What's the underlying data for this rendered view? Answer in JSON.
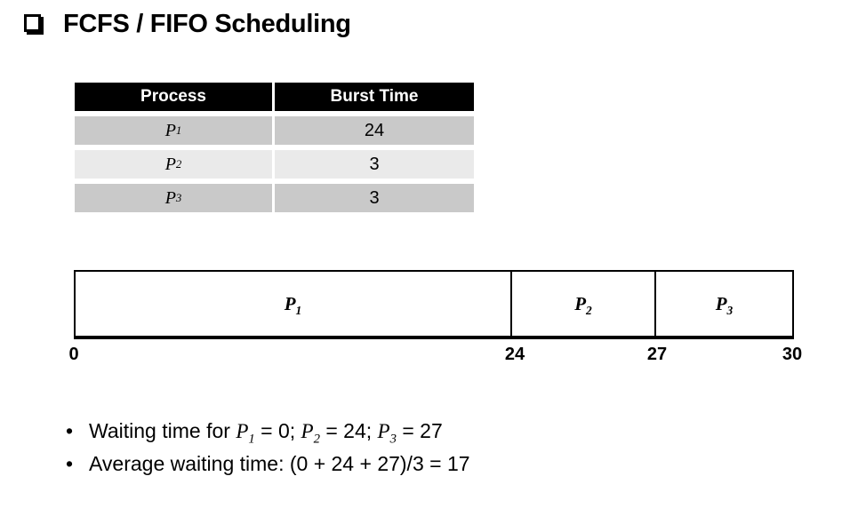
{
  "title": {
    "text": "FCFS / FIFO Scheduling"
  },
  "process_table": {
    "headers": [
      "Process",
      "Burst Time"
    ],
    "rows": [
      {
        "process": {
          "base": "P",
          "sub": "1"
        },
        "burst_time": "24"
      },
      {
        "process": {
          "base": "P",
          "sub": "2"
        },
        "burst_time": "3"
      },
      {
        "process": {
          "base": "P",
          "sub": "3"
        },
        "burst_time": "3"
      }
    ]
  },
  "gantt_chart": {
    "type": "gantt",
    "segments": [
      {
        "label": {
          "base": "P",
          "sub": "1"
        },
        "start": 0,
        "end": 24
      },
      {
        "label": {
          "base": "P",
          "sub": "2"
        },
        "start": 24,
        "end": 27
      },
      {
        "label": {
          "base": "P",
          "sub": "3"
        },
        "start": 27,
        "end": 30
      }
    ],
    "tick_labels": [
      "0",
      "24",
      "27",
      "30"
    ],
    "axis_range": [
      0,
      30
    ]
  },
  "notes": {
    "bullet_glyph": "•",
    "bullets": [
      {
        "parts": [
          {
            "t": "Waiting time for "
          },
          {
            "t": "P",
            "s": "var"
          },
          {
            "t": "1",
            "s": "sub"
          },
          {
            "t": " = 0; "
          },
          {
            "t": "P",
            "s": "var"
          },
          {
            "t": "2",
            "s": "sub"
          },
          {
            "t": " = 24; "
          },
          {
            "t": "P",
            "s": "var"
          },
          {
            "t": "3",
            "s": "sub"
          },
          {
            "t": " = 27"
          }
        ]
      },
      {
        "parts": [
          {
            "t": "Average waiting time: (0 + 24 + 27)/3 = 17"
          }
        ]
      }
    ]
  },
  "colors": {
    "background": "#ffffff",
    "text": "#000000",
    "table_header_bg": "#000000",
    "table_header_text": "#ffffff",
    "table_row_dark": "#c9c9c9",
    "table_row_light": "#eaeaea",
    "gantt_border": "#000000"
  }
}
